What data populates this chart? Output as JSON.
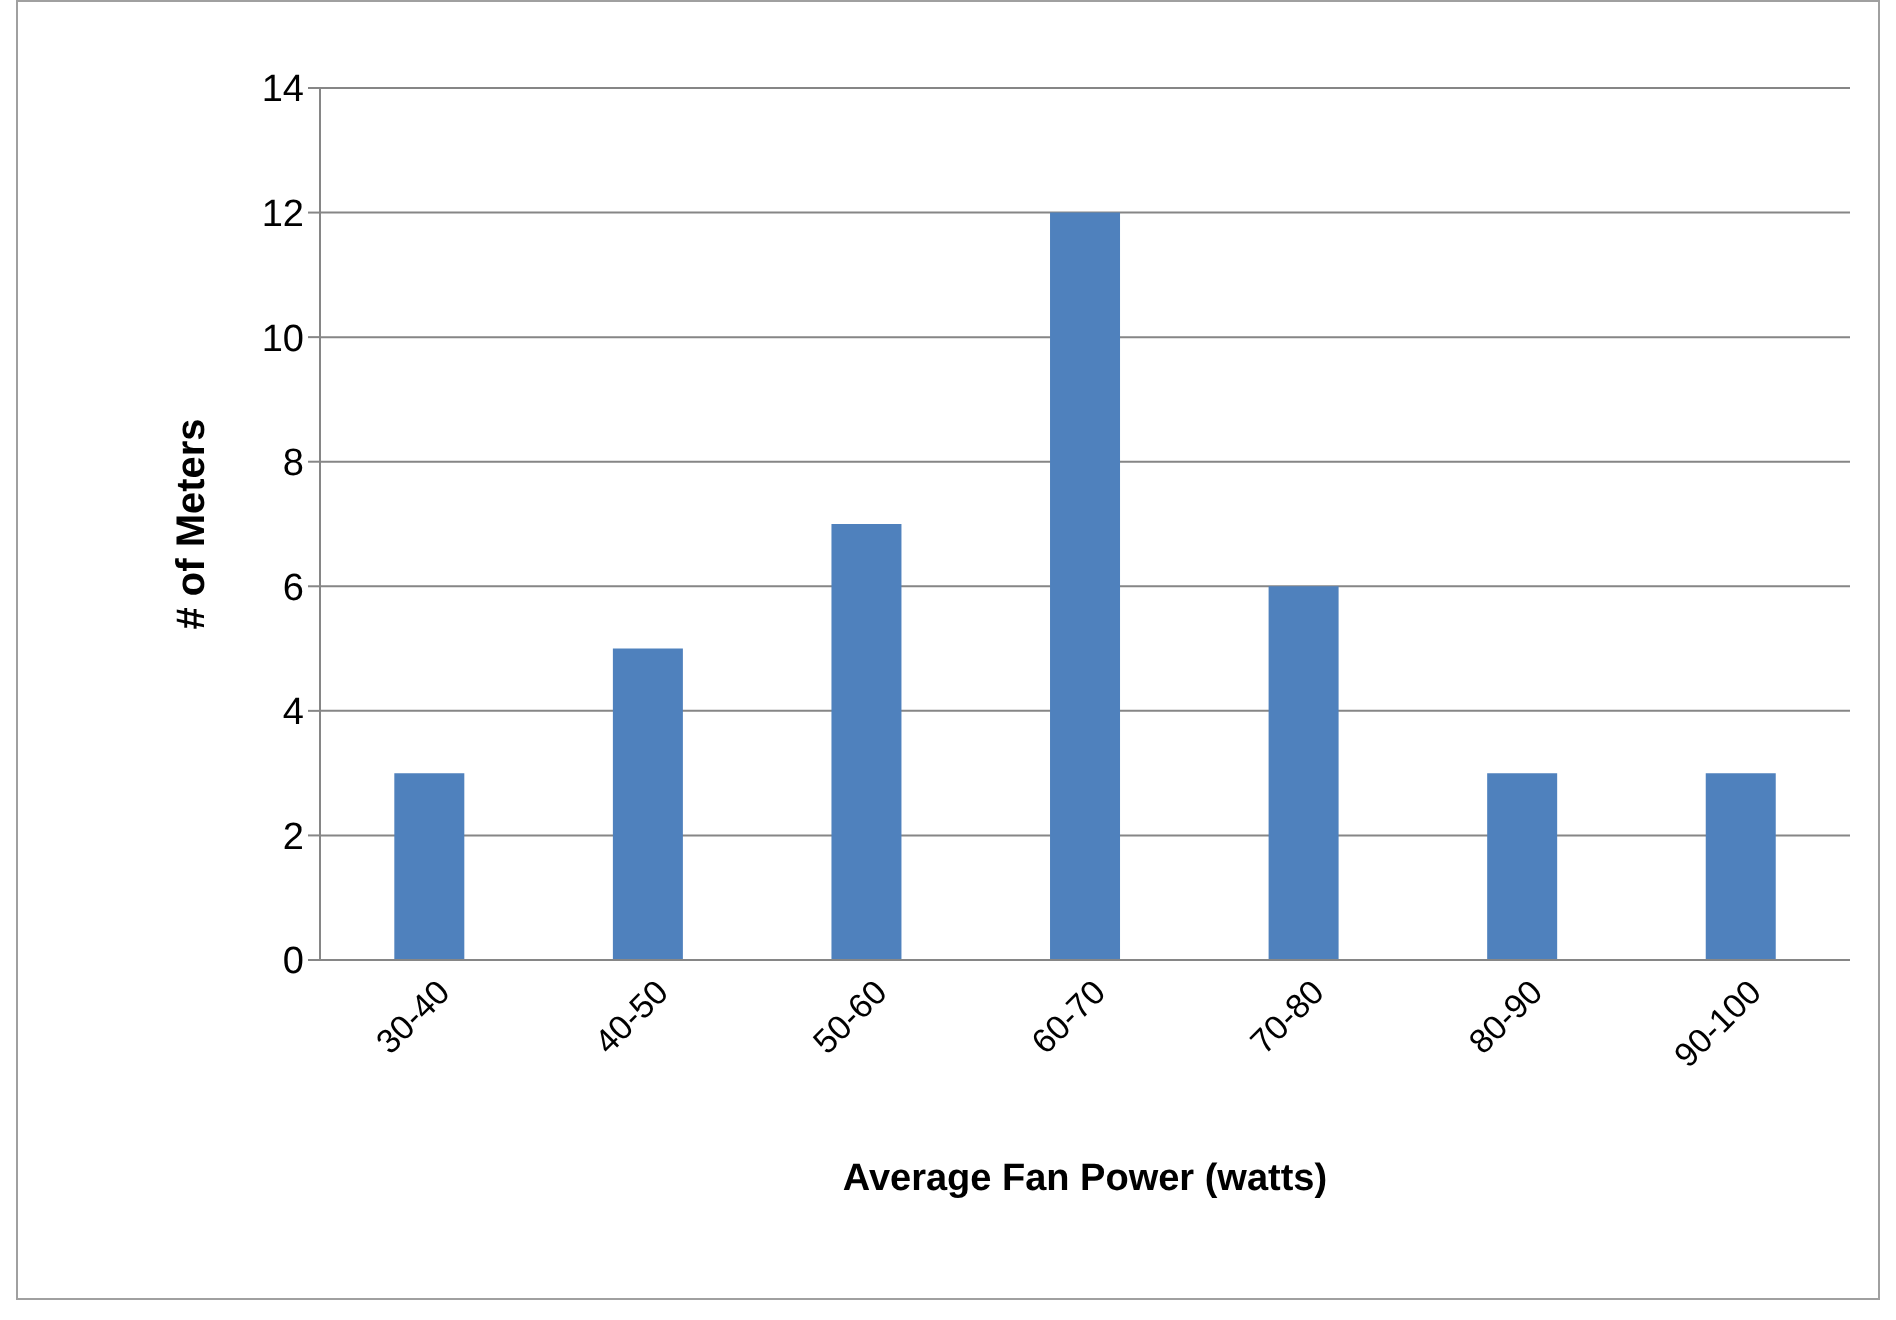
{
  "chart_data": {
    "type": "bar",
    "xlabel": "Average Fan Power (watts)",
    "ylabel": "# of Meters",
    "categories": [
      "30-40",
      "40-50",
      "50-60",
      "60-70",
      "70-80",
      "80-90",
      "90-100"
    ],
    "values": [
      3,
      5,
      7,
      12,
      6,
      3,
      3
    ],
    "color": "#4f81bd",
    "ylim": [
      0,
      14
    ],
    "yticks": [
      0,
      2,
      4,
      6,
      8,
      10,
      12,
      14
    ],
    "grid": "y"
  }
}
